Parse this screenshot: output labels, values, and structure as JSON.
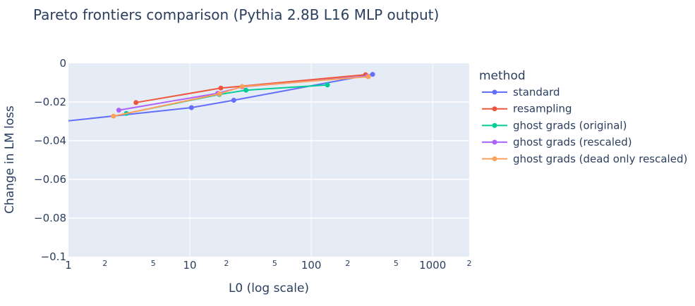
{
  "chart_data": {
    "type": "line",
    "title": "Pareto frontiers comparison (Pythia 2.8B L16 MLP output)",
    "xlabel": "L0 (log scale)",
    "ylabel": "Change in LM loss",
    "xscale": "log",
    "xlim": [
      1,
      2000
    ],
    "ylim": [
      -0.1,
      0
    ],
    "x_major_ticks": [
      {
        "value": 1,
        "label": "1"
      },
      {
        "value": 10,
        "label": "10"
      },
      {
        "value": 100,
        "label": "100"
      },
      {
        "value": 1000,
        "label": "1000"
      }
    ],
    "x_minor_ticks": [
      {
        "value": 2,
        "label": "2"
      },
      {
        "value": 5,
        "label": "5"
      },
      {
        "value": 20,
        "label": "2"
      },
      {
        "value": 50,
        "label": "5"
      },
      {
        "value": 200,
        "label": "2"
      },
      {
        "value": 500,
        "label": "5"
      },
      {
        "value": 2000,
        "label": "2"
      }
    ],
    "y_ticks": [
      {
        "value": 0,
        "label": "0"
      },
      {
        "value": -0.02,
        "label": "−0.02"
      },
      {
        "value": -0.04,
        "label": "−0.04"
      },
      {
        "value": -0.06,
        "label": "−0.06"
      },
      {
        "value": -0.08,
        "label": "−0.08"
      },
      {
        "value": -0.1,
        "label": "−0.1"
      }
    ],
    "grid": true,
    "legend_title": "method",
    "legend_position": "right",
    "series": [
      {
        "name": "standard",
        "color": "#636efa",
        "points": [
          {
            "x": 0.8,
            "y": -0.0304,
            "marker": false
          },
          {
            "x": 10.3,
            "y": -0.0229,
            "marker": true
          },
          {
            "x": 23,
            "y": -0.0191,
            "marker": true
          },
          {
            "x": 320,
            "y": -0.0057,
            "marker": true
          }
        ]
      },
      {
        "name": "resampling",
        "color": "#ef553b",
        "points": [
          {
            "x": 3.6,
            "y": -0.0203,
            "marker": true
          },
          {
            "x": 18,
            "y": -0.0128,
            "marker": true
          },
          {
            "x": 280,
            "y": -0.0059,
            "marker": true
          }
        ]
      },
      {
        "name": "ghost grads (original)",
        "color": "#00cc96",
        "points": [
          {
            "x": 3.0,
            "y": -0.0259,
            "marker": true
          },
          {
            "x": 17.5,
            "y": -0.0161,
            "marker": true
          },
          {
            "x": 29,
            "y": -0.0139,
            "marker": true
          },
          {
            "x": 136,
            "y": -0.0112,
            "marker": true
          }
        ]
      },
      {
        "name": "ghost grads (rescaled)",
        "color": "#ab63fa",
        "points": [
          {
            "x": 2.6,
            "y": -0.0242,
            "marker": true
          },
          {
            "x": 17,
            "y": -0.0155,
            "marker": true
          },
          {
            "x": 27,
            "y": -0.0122,
            "marker": true
          },
          {
            "x": 290,
            "y": -0.0066,
            "marker": true
          }
        ]
      },
      {
        "name": "ghost grads (dead only rescaled)",
        "color": "#ffa15a",
        "points": [
          {
            "x": 2.35,
            "y": -0.0273,
            "marker": true
          },
          {
            "x": 17.5,
            "y": -0.0158,
            "marker": true
          },
          {
            "x": 27,
            "y": -0.012,
            "marker": true
          },
          {
            "x": 295,
            "y": -0.0069,
            "marker": true
          }
        ]
      }
    ]
  }
}
